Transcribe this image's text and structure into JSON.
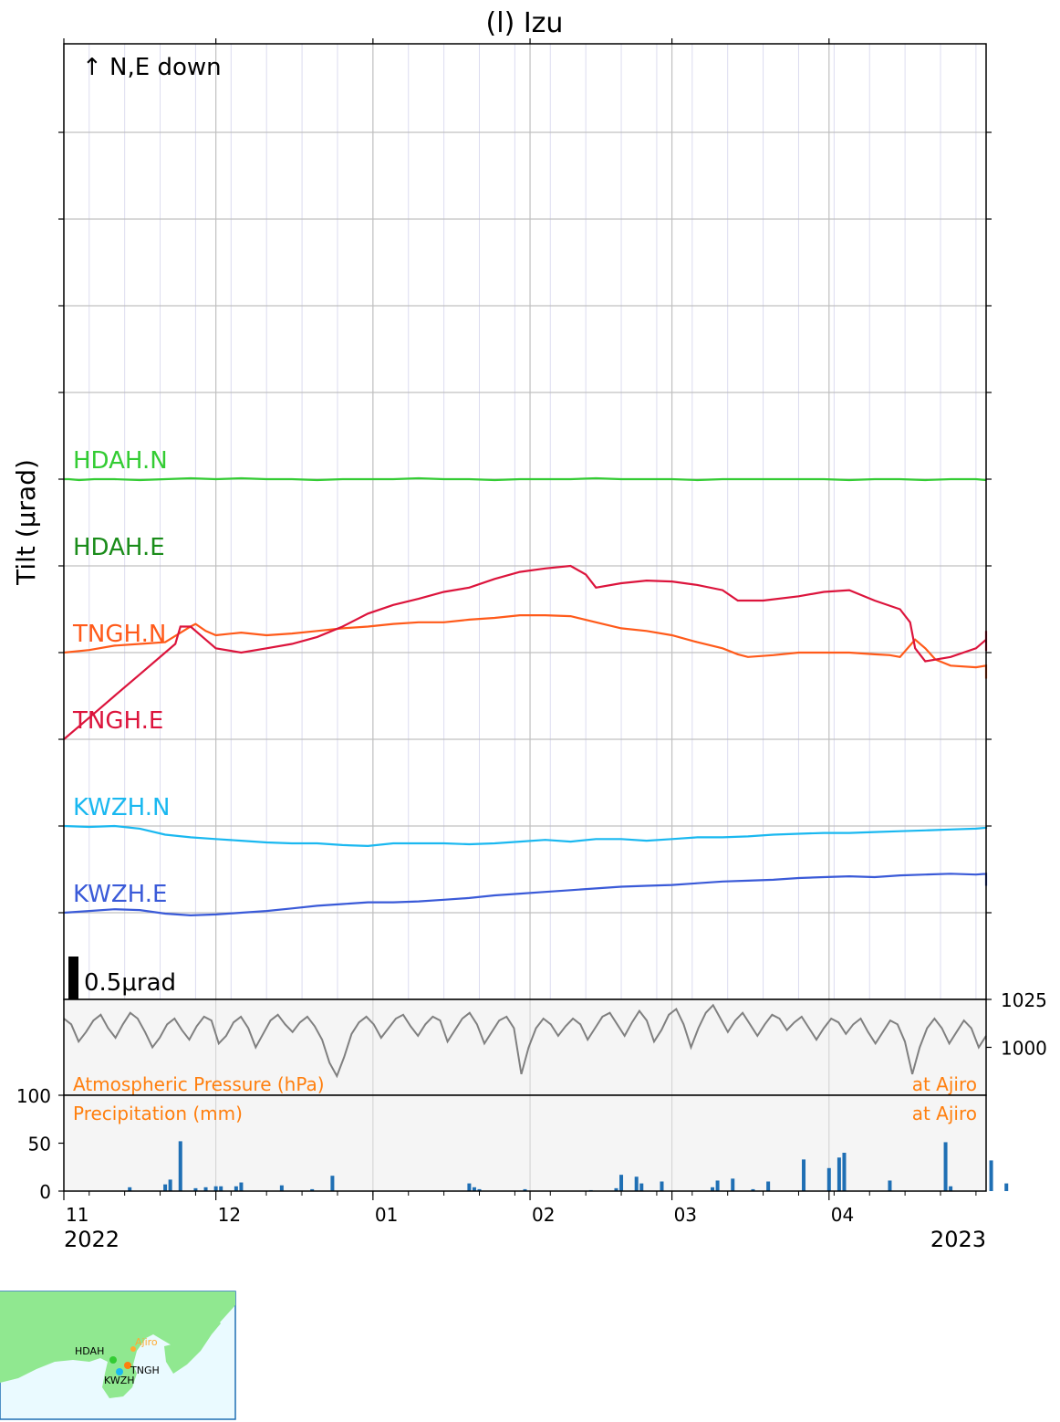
{
  "chart_data": {
    "type": "line",
    "title": "(l) Izu",
    "ylabel": "Tilt (μrad)",
    "orientation_note": "↑ N,E down",
    "scale_bar_label": "0.5μrad",
    "x_tick_labels": [
      "11",
      "12",
      "01",
      "02",
      "03",
      "04"
    ],
    "x_year_labels": [
      "2022",
      "2023"
    ],
    "tilt_series": [
      {
        "name": "HDAH.N",
        "color": "#33cc33",
        "base": 5.0,
        "points": [
          [
            0,
            5.0
          ],
          [
            1,
            5.0
          ],
          [
            3,
            4.99
          ],
          [
            6,
            5.0
          ],
          [
            10,
            5.0
          ],
          [
            15,
            4.99
          ],
          [
            20,
            5.0
          ],
          [
            25,
            5.01
          ],
          [
            30,
            5.0
          ],
          [
            35,
            5.01
          ],
          [
            40,
            5.0
          ],
          [
            45,
            5.0
          ],
          [
            50,
            4.99
          ],
          [
            55,
            5.0
          ],
          [
            60,
            5.0
          ],
          [
            65,
            5.0
          ],
          [
            70,
            5.01
          ],
          [
            75,
            5.0
          ],
          [
            80,
            5.0
          ],
          [
            85,
            4.99
          ],
          [
            90,
            5.0
          ],
          [
            95,
            5.0
          ],
          [
            100,
            5.0
          ],
          [
            105,
            5.01
          ],
          [
            110,
            5.0
          ],
          [
            115,
            5.0
          ],
          [
            120,
            5.0
          ],
          [
            125,
            4.99
          ],
          [
            130,
            5.0
          ],
          [
            135,
            5.0
          ],
          [
            140,
            5.0
          ],
          [
            145,
            5.0
          ],
          [
            150,
            5.0
          ],
          [
            155,
            4.99
          ],
          [
            160,
            5.0
          ],
          [
            165,
            5.0
          ],
          [
            170,
            4.99
          ],
          [
            175,
            5.0
          ],
          [
            180,
            5.0
          ],
          [
            182,
            4.99
          ]
        ]
      },
      {
        "name": "HDAH.E",
        "color": "#1a8c1a",
        "base": 4.0,
        "points": []
      },
      {
        "name": "TNGH.N",
        "color": "#ff5a1a",
        "base": 3.0,
        "points": [
          [
            0,
            3.0
          ],
          [
            5,
            3.03
          ],
          [
            10,
            3.08
          ],
          [
            15,
            3.1
          ],
          [
            20,
            3.12
          ],
          [
            25,
            3.3
          ],
          [
            26,
            3.33
          ],
          [
            28,
            3.25
          ],
          [
            30,
            3.2
          ],
          [
            35,
            3.23
          ],
          [
            40,
            3.2
          ],
          [
            45,
            3.22
          ],
          [
            50,
            3.25
          ],
          [
            55,
            3.28
          ],
          [
            60,
            3.3
          ],
          [
            65,
            3.33
          ],
          [
            70,
            3.35
          ],
          [
            75,
            3.35
          ],
          [
            80,
            3.38
          ],
          [
            85,
            3.4
          ],
          [
            90,
            3.43
          ],
          [
            95,
            3.43
          ],
          [
            100,
            3.42
          ],
          [
            105,
            3.35
          ],
          [
            110,
            3.28
          ],
          [
            115,
            3.25
          ],
          [
            120,
            3.2
          ],
          [
            125,
            3.12
          ],
          [
            130,
            3.05
          ],
          [
            133,
            2.98
          ],
          [
            135,
            2.95
          ],
          [
            140,
            2.97
          ],
          [
            145,
            3.0
          ],
          [
            150,
            3.0
          ],
          [
            155,
            3.0
          ],
          [
            160,
            2.98
          ],
          [
            163,
            2.97
          ],
          [
            165,
            2.95
          ],
          [
            168,
            3.15
          ],
          [
            170,
            3.05
          ],
          [
            172,
            2.92
          ],
          [
            175,
            2.85
          ],
          [
            180,
            2.83
          ],
          [
            185,
            2.85
          ],
          [
            190,
            2.82
          ],
          [
            195,
            2.8
          ],
          [
            200,
            2.78
          ],
          [
            205,
            2.72
          ],
          [
            210,
            2.7
          ],
          [
            213,
            2.72
          ]
        ]
      },
      {
        "name": "TNGH.E",
        "color": "#dc143c",
        "base": 2.0,
        "points": [
          [
            0,
            2.0
          ],
          [
            5,
            2.25
          ],
          [
            10,
            2.5
          ],
          [
            15,
            2.75
          ],
          [
            20,
            3.0
          ],
          [
            22,
            3.1
          ],
          [
            23,
            3.3
          ],
          [
            25,
            3.3
          ],
          [
            28,
            3.15
          ],
          [
            30,
            3.05
          ],
          [
            35,
            3.0
          ],
          [
            40,
            3.05
          ],
          [
            45,
            3.1
          ],
          [
            50,
            3.18
          ],
          [
            55,
            3.3
          ],
          [
            60,
            3.45
          ],
          [
            65,
            3.55
          ],
          [
            70,
            3.62
          ],
          [
            75,
            3.7
          ],
          [
            80,
            3.75
          ],
          [
            85,
            3.85
          ],
          [
            90,
            3.93
          ],
          [
            95,
            3.97
          ],
          [
            100,
            4.0
          ],
          [
            103,
            3.9
          ],
          [
            105,
            3.75
          ],
          [
            110,
            3.8
          ],
          [
            115,
            3.83
          ],
          [
            120,
            3.82
          ],
          [
            125,
            3.78
          ],
          [
            130,
            3.72
          ],
          [
            133,
            3.6
          ],
          [
            138,
            3.6
          ],
          [
            145,
            3.65
          ],
          [
            150,
            3.7
          ],
          [
            155,
            3.72
          ],
          [
            160,
            3.6
          ],
          [
            165,
            3.5
          ],
          [
            167,
            3.35
          ],
          [
            168,
            3.05
          ],
          [
            170,
            2.9
          ],
          [
            175,
            2.95
          ],
          [
            180,
            3.05
          ],
          [
            185,
            3.15
          ],
          [
            190,
            3.25
          ],
          [
            195,
            3.15
          ],
          [
            200,
            3.1
          ],
          [
            205,
            3.08
          ],
          [
            210,
            3.05
          ],
          [
            213,
            3.02
          ]
        ]
      },
      {
        "name": "KWZH.N",
        "color": "#1ab8f0",
        "base": 1.0,
        "points": [
          [
            0,
            1.0
          ],
          [
            5,
            0.99
          ],
          [
            10,
            1.0
          ],
          [
            15,
            0.97
          ],
          [
            20,
            0.9
          ],
          [
            25,
            0.87
          ],
          [
            30,
            0.85
          ],
          [
            35,
            0.83
          ],
          [
            40,
            0.81
          ],
          [
            45,
            0.8
          ],
          [
            50,
            0.8
          ],
          [
            55,
            0.78
          ],
          [
            60,
            0.77
          ],
          [
            65,
            0.8
          ],
          [
            70,
            0.8
          ],
          [
            75,
            0.8
          ],
          [
            80,
            0.79
          ],
          [
            85,
            0.8
          ],
          [
            90,
            0.82
          ],
          [
            95,
            0.84
          ],
          [
            100,
            0.82
          ],
          [
            105,
            0.85
          ],
          [
            110,
            0.85
          ],
          [
            115,
            0.83
          ],
          [
            120,
            0.85
          ],
          [
            125,
            0.87
          ],
          [
            130,
            0.87
          ],
          [
            135,
            0.88
          ],
          [
            140,
            0.9
          ],
          [
            145,
            0.91
          ],
          [
            150,
            0.92
          ],
          [
            155,
            0.92
          ],
          [
            160,
            0.93
          ],
          [
            165,
            0.94
          ],
          [
            170,
            0.95
          ],
          [
            175,
            0.96
          ],
          [
            180,
            0.97
          ],
          [
            185,
            0.98
          ],
          [
            190,
            0.97
          ],
          [
            195,
            0.99
          ],
          [
            200,
            0.98
          ],
          [
            205,
            0.98
          ],
          [
            210,
            0.98
          ],
          [
            213,
            0.98
          ]
        ]
      },
      {
        "name": "KWZH.E",
        "color": "#3a5ad8",
        "base": 0.0,
        "points": [
          [
            0,
            0.0
          ],
          [
            5,
            0.02
          ],
          [
            10,
            0.04
          ],
          [
            15,
            0.03
          ],
          [
            20,
            -0.01
          ],
          [
            25,
            -0.03
          ],
          [
            30,
            -0.02
          ],
          [
            35,
            0.0
          ],
          [
            40,
            0.02
          ],
          [
            45,
            0.05
          ],
          [
            50,
            0.08
          ],
          [
            55,
            0.1
          ],
          [
            60,
            0.12
          ],
          [
            65,
            0.12
          ],
          [
            70,
            0.13
          ],
          [
            75,
            0.15
          ],
          [
            80,
            0.17
          ],
          [
            85,
            0.2
          ],
          [
            90,
            0.22
          ],
          [
            95,
            0.24
          ],
          [
            100,
            0.26
          ],
          [
            105,
            0.28
          ],
          [
            110,
            0.3
          ],
          [
            115,
            0.31
          ],
          [
            120,
            0.32
          ],
          [
            125,
            0.34
          ],
          [
            130,
            0.36
          ],
          [
            135,
            0.37
          ],
          [
            140,
            0.38
          ],
          [
            145,
            0.4
          ],
          [
            150,
            0.41
          ],
          [
            155,
            0.42
          ],
          [
            160,
            0.41
          ],
          [
            165,
            0.43
          ],
          [
            170,
            0.44
          ],
          [
            175,
            0.45
          ],
          [
            180,
            0.44
          ],
          [
            185,
            0.45
          ],
          [
            190,
            0.46
          ],
          [
            195,
            0.45
          ],
          [
            200,
            0.44
          ],
          [
            205,
            0.44
          ],
          [
            210,
            0.4
          ],
          [
            213,
            0.31
          ]
        ]
      }
    ],
    "pressure": {
      "label": "Atmospheric Pressure (hPa)",
      "station": "at Ajiro",
      "color": "#808080",
      "ylim": [
        975,
        1025
      ],
      "yticks": [
        1000,
        1025
      ],
      "values": [
        1015,
        1012,
        1003,
        1008,
        1014,
        1017,
        1010,
        1005,
        1012,
        1018,
        1015,
        1008,
        1000,
        1005,
        1012,
        1015,
        1009,
        1004,
        1011,
        1016,
        1014,
        1002,
        1006,
        1013,
        1016,
        1010,
        1000,
        1007,
        1014,
        1017,
        1012,
        1008,
        1013,
        1016,
        1011,
        1004,
        992,
        985,
        995,
        1007,
        1013,
        1016,
        1012,
        1005,
        1010,
        1015,
        1017,
        1011,
        1006,
        1012,
        1016,
        1014,
        1003,
        1009,
        1015,
        1018,
        1012,
        1002,
        1008,
        1014,
        1016,
        1010,
        986,
        1000,
        1010,
        1015,
        1012,
        1006,
        1011,
        1015,
        1012,
        1004,
        1010,
        1016,
        1018,
        1012,
        1006,
        1013,
        1019,
        1014,
        1003,
        1009,
        1017,
        1020,
        1012,
        1000,
        1010,
        1018,
        1022,
        1015,
        1008,
        1014,
        1018,
        1012,
        1006,
        1012,
        1017,
        1015,
        1009,
        1013,
        1016,
        1010,
        1004,
        1010,
        1015,
        1013,
        1007,
        1012,
        1015,
        1008,
        1002,
        1008,
        1014,
        1012,
        1003,
        986,
        1000,
        1010,
        1015,
        1010,
        1002,
        1008,
        1014,
        1010,
        1000,
        1006
      ]
    },
    "precipitation": {
      "label": "Precipitation (mm)",
      "station": "at Ajiro",
      "color": "#1f6fb4",
      "ylim": [
        0,
        100
      ],
      "yticks": [
        0,
        50,
        100
      ],
      "bars": [
        [
          13,
          4
        ],
        [
          20,
          7
        ],
        [
          21,
          12
        ],
        [
          23,
          52
        ],
        [
          26,
          3
        ],
        [
          28,
          4
        ],
        [
          30,
          5
        ],
        [
          31,
          5
        ],
        [
          34,
          5
        ],
        [
          35,
          9
        ],
        [
          43,
          6
        ],
        [
          49,
          2
        ],
        [
          53,
          16
        ],
        [
          80,
          8
        ],
        [
          81,
          4
        ],
        [
          82,
          2
        ],
        [
          91,
          2
        ],
        [
          104,
          1
        ],
        [
          109,
          3
        ],
        [
          110,
          17
        ],
        [
          113,
          15
        ],
        [
          114,
          8
        ],
        [
          118,
          10
        ],
        [
          128,
          4
        ],
        [
          129,
          11
        ],
        [
          132,
          13
        ],
        [
          136,
          2
        ],
        [
          139,
          10
        ],
        [
          146,
          33
        ],
        [
          151,
          24
        ],
        [
          153,
          35
        ],
        [
          154,
          40
        ],
        [
          163,
          11
        ],
        [
          174,
          51
        ],
        [
          175,
          5
        ],
        [
          183,
          32
        ],
        [
          186,
          8
        ]
      ]
    }
  },
  "inset_map": {
    "stations": [
      {
        "name": "HDAH",
        "color": "#33cc33"
      },
      {
        "name": "TNGH",
        "color": "#ff7f0e"
      },
      {
        "name": "KWZH",
        "color": "#1ab8f0"
      }
    ],
    "weather_station": {
      "name": "Ajiro",
      "color": "#ffaa33"
    },
    "land_color": "#90e890",
    "sea_color": "#eafaff"
  }
}
